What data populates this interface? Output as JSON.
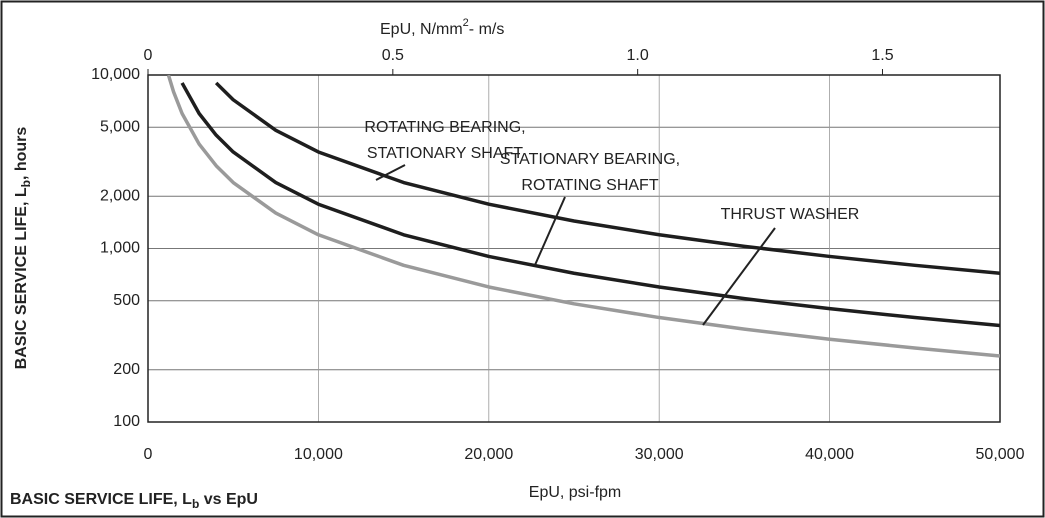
{
  "chart_data": {
    "type": "line",
    "x2label": [
      "EpU, N/mm",
      "2",
      "- m/s"
    ],
    "ylabel": [
      "BASIC SERVICE LIFE, L",
      "b",
      ", hours"
    ],
    "xlabel": "EpU, psi-fpm",
    "caption": [
      "BASIC SERVICE LIFE, L",
      "b",
      " vs EpU"
    ],
    "log_y": true,
    "grid": true,
    "x": [
      1200,
      1500,
      2000,
      3000,
      4000,
      5000,
      7500,
      10000,
      15000,
      20000,
      25000,
      30000,
      35000,
      40000,
      45000,
      50000
    ],
    "series": [
      {
        "name": [
          "ROTATING BEARING,",
          "STATIONARY SHAFT"
        ],
        "color": "#1e1e1e",
        "values": [
          null,
          null,
          null,
          null,
          9000,
          7200,
          4800,
          3600,
          2400,
          1800,
          1440,
          1200,
          1029,
          900,
          800,
          720
        ]
      },
      {
        "name": [
          "STATIONARY BEARING,",
          "ROTATING SHAFT"
        ],
        "color": "#1e1e1e",
        "values": [
          null,
          null,
          9000,
          6000,
          4500,
          3600,
          2400,
          1800,
          1200,
          900,
          720,
          600,
          514,
          450,
          400,
          360
        ]
      },
      {
        "name": [
          "THRUST WASHER"
        ],
        "color": "#9a9a9a",
        "values": [
          10000,
          8000,
          6000,
          4000,
          3000,
          2400,
          1600,
          1200,
          800,
          600,
          480,
          400,
          343,
          300,
          267,
          240
        ]
      }
    ],
    "xlim": [
      0,
      50000
    ],
    "xticks": [
      0,
      {
        "value": 10000,
        "label": "10,000"
      },
      {
        "value": 20000,
        "label": "20,000"
      },
      {
        "value": 30000,
        "label": "30,000"
      },
      {
        "value": 40000,
        "label": "40,000"
      },
      {
        "value": 50000,
        "label": "50,000"
      }
    ],
    "x2lim": [
      0,
      1.74
    ],
    "x2ticks": [
      0,
      0.5,
      {
        "value": 1,
        "label": "1.0"
      },
      1.5
    ],
    "ylim": [
      100,
      10000
    ],
    "yticks": [
      100,
      200,
      500,
      {
        "value": 1000,
        "label": "1,000"
      },
      {
        "value": 2000,
        "label": "2,000"
      },
      {
        "value": 5000,
        "label": "5,000"
      },
      {
        "value": 10000,
        "label": "10,000"
      }
    ]
  }
}
